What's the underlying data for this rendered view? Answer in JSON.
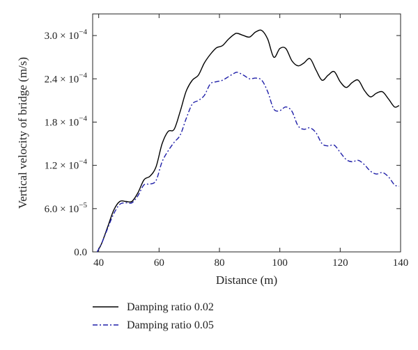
{
  "chart_data": {
    "type": "line",
    "title": "",
    "xlabel": "Distance (m)",
    "ylabel": "Vertical velocity of bridge (m/s)",
    "xlim": [
      38,
      140
    ],
    "ylim": [
      0,
      0.00033
    ],
    "grid": false,
    "legend_placement": "below",
    "x_ticks": [
      {
        "value": 40,
        "label": "40"
      },
      {
        "value": 60,
        "label": "60"
      },
      {
        "value": 80,
        "label": "80"
      },
      {
        "value": 100,
        "label": "100"
      },
      {
        "value": 120,
        "label": "120"
      },
      {
        "value": 140,
        "label": "140"
      }
    ],
    "y_ticks": [
      {
        "value": 0,
        "label": "0.0"
      },
      {
        "value": 6e-05,
        "mant": "6.0",
        "exp": "−5"
      },
      {
        "value": 0.00012,
        "mant": "1.2",
        "exp": "−4"
      },
      {
        "value": 0.00018,
        "mant": "1.8",
        "exp": "−4"
      },
      {
        "value": 0.00024,
        "mant": "2.4",
        "exp": "−4"
      },
      {
        "value": 0.0003,
        "mant": "3.0",
        "exp": "−4"
      }
    ],
    "series": [
      {
        "name": "Damping ratio 0.02",
        "color": "#000000",
        "dash": "solid",
        "x": [
          39.5,
          41,
          43,
          45,
          47,
          49,
          51,
          53,
          55,
          57,
          59,
          61,
          63,
          65,
          67,
          69,
          71,
          73,
          75,
          77,
          79,
          81,
          83,
          85,
          86,
          88,
          90,
          92,
          94,
          96,
          98,
          100,
          102,
          104,
          106,
          108,
          110,
          112,
          114,
          116,
          118,
          120,
          122,
          124,
          126,
          128,
          130,
          132,
          134,
          136,
          138,
          139.5
        ],
        "y": [
          0,
          1.2e-05,
          3.5e-05,
          5.8e-05,
          7e-05,
          7e-05,
          7e-05,
          8.2e-05,
          0.0001,
          0.000105,
          0.000118,
          0.00015,
          0.000167,
          0.00017,
          0.000195,
          0.000223,
          0.000238,
          0.000245,
          0.000262,
          0.000274,
          0.000283,
          0.000286,
          0.000295,
          0.000302,
          0.000303,
          0.0003,
          0.000298,
          0.000305,
          0.000307,
          0.000295,
          0.00027,
          0.000282,
          0.000282,
          0.000265,
          0.000258,
          0.000262,
          0.000268,
          0.000252,
          0.000238,
          0.000245,
          0.00025,
          0.000236,
          0.000228,
          0.000235,
          0.000238,
          0.000224,
          0.000215,
          0.00022,
          0.000222,
          0.000212,
          0.000201,
          0.000203
        ]
      },
      {
        "name": "Damping ratio 0.05",
        "color": "#1f1fa8",
        "dash": "dashdot",
        "x": [
          39.5,
          41,
          43,
          45,
          47,
          49,
          51,
          53,
          55,
          57,
          59,
          61,
          63,
          65,
          67,
          69,
          71,
          73,
          75,
          77,
          79,
          81,
          83,
          85,
          86,
          88,
          90,
          92,
          94,
          96,
          98,
          100,
          102,
          104,
          106,
          108,
          110,
          112,
          114,
          116,
          118,
          120,
          122,
          124,
          126,
          128,
          130,
          132,
          134,
          136,
          138,
          139.5
        ],
        "y": [
          0,
          1.2e-05,
          3.3e-05,
          5.3e-05,
          6.6e-05,
          6.8e-05,
          6.8e-05,
          7.8e-05,
          9.3e-05,
          9.4e-05,
          9.9e-05,
          0.000125,
          0.00014,
          0.000152,
          0.000162,
          0.000185,
          0.000205,
          0.00021,
          0.000217,
          0.000233,
          0.000236,
          0.000238,
          0.000243,
          0.000248,
          0.000249,
          0.000245,
          0.00024,
          0.000241,
          0.000238,
          0.000222,
          0.000198,
          0.000196,
          0.000201,
          0.000195,
          0.000175,
          0.00017,
          0.000172,
          0.000165,
          0.00015,
          0.000147,
          0.000148,
          0.000138,
          0.000128,
          0.000125,
          0.000127,
          0.000121,
          0.000112,
          0.000108,
          0.00011,
          0.000104,
          9.3e-05,
          9.1e-05
        ]
      }
    ]
  }
}
